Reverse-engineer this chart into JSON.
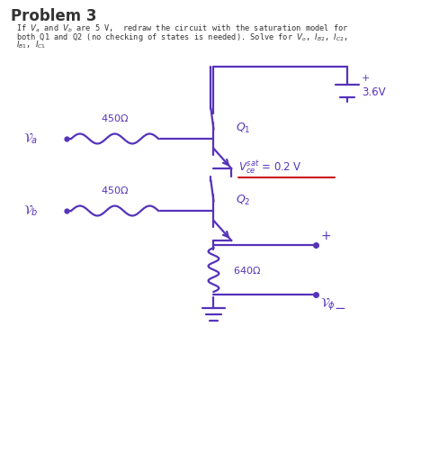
{
  "title": "Problem 3",
  "sub1": "If $V_a$ and $V_b$ are 5 V,  redraw the circuit with the saturation model for",
  "sub2": "both Q1 and Q2 (no checking of states is needed). Solve for $V_o$, $I_{B2}$, $I_{C2}$,",
  "sub3": "$I_{B1}$, $I_{C1}$",
  "circuit_color": "#5533BB",
  "text_color": "#333333",
  "red_color": "#CC1111",
  "bg_color": "#FFFFFF",
  "lw": 1.6,
  "r1": "450Ω",
  "r2": "450Ω",
  "r3": "640Ω",
  "q1": "Q₁",
  "q2": "Q₂",
  "va": "$\\\\mathcal{V}_a$",
  "vb": "$\\\\mathcal{V}_b$",
  "vo": "$\\\\mathcal{V}_\\\\phi$",
  "vce_sat": "$V^{sat}_{ce}$ = 0.2 V",
  "v36": "+ 3.6V"
}
